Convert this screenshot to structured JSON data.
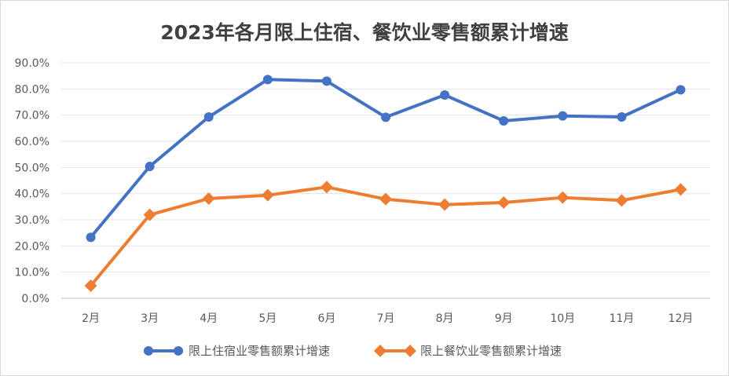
{
  "chart_data": {
    "type": "line",
    "title": "2023年各月限上住宿、餐饮业零售额累计增速",
    "categories": [
      "2月",
      "3月",
      "4月",
      "5月",
      "6月",
      "7月",
      "8月",
      "9月",
      "10月",
      "11月",
      "12月"
    ],
    "y_ticks": [
      "0.0%",
      "10.0%",
      "20.0%",
      "30.0%",
      "40.0%",
      "50.0%",
      "60.0%",
      "70.0%",
      "80.0%",
      "90.0%"
    ],
    "ylim": [
      0,
      90
    ],
    "grid": true,
    "legend_position": "bottom",
    "series": [
      {
        "name": "限上住宿业零售额累计增速",
        "color": "#4472c4",
        "marker": "circle",
        "values": [
          23.3,
          50.4,
          69.3,
          83.6,
          83.0,
          69.2,
          77.7,
          67.8,
          69.7,
          69.3,
          79.7
        ]
      },
      {
        "name": "限上餐饮业零售额累计增速",
        "color": "#ed7d31",
        "marker": "diamond",
        "values": [
          4.8,
          31.9,
          38.1,
          39.4,
          42.5,
          37.9,
          35.8,
          36.6,
          38.5,
          37.4,
          41.6
        ]
      }
    ]
  }
}
